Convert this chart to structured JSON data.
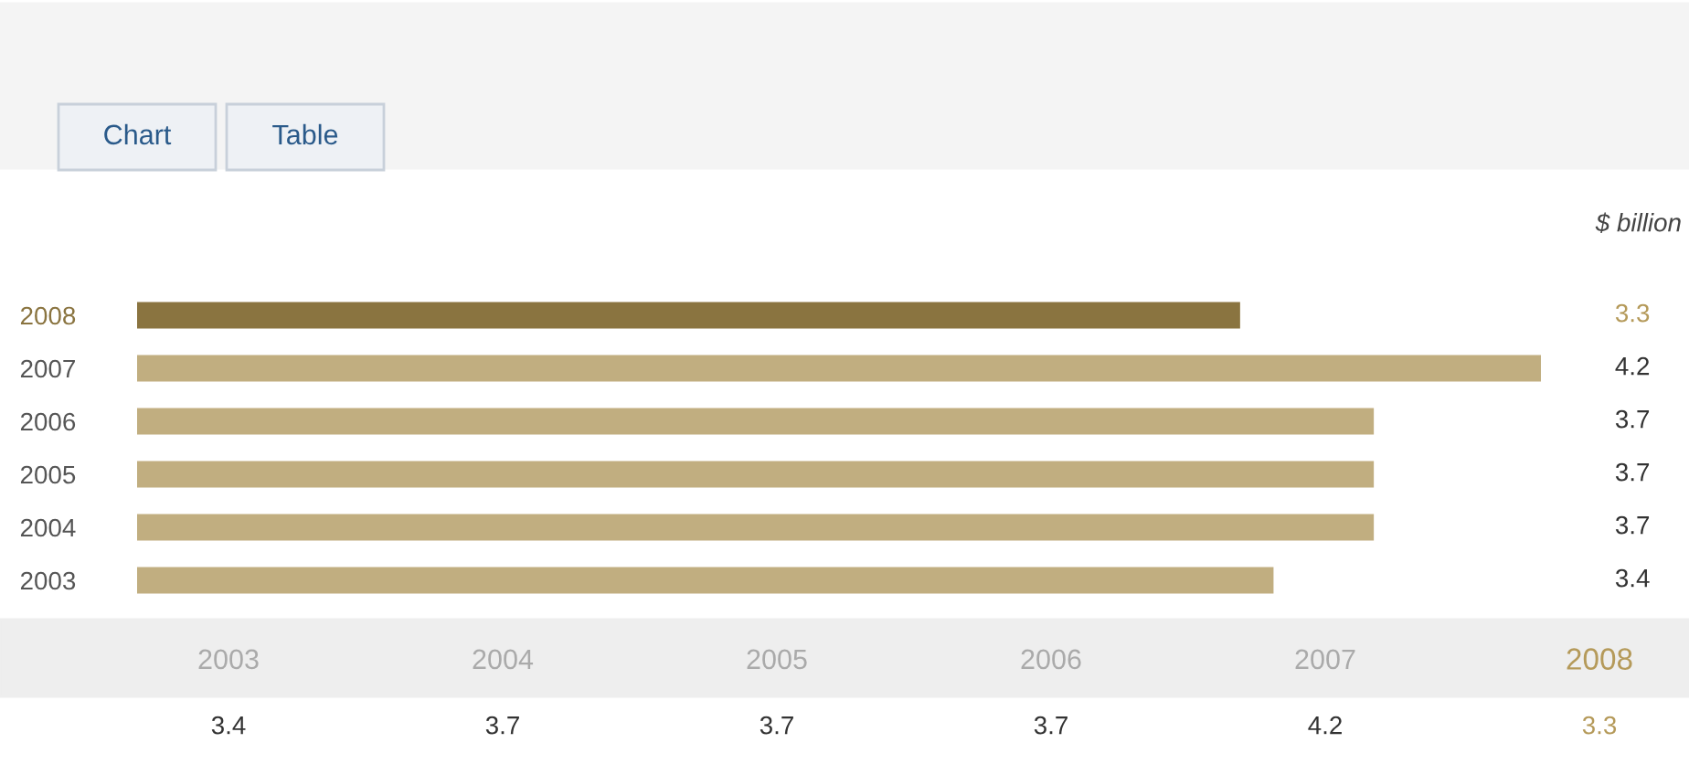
{
  "chart_data": {
    "type": "bar",
    "orientation": "horizontal",
    "subtitle": "$ billion",
    "categories": [
      "2008",
      "2007",
      "2006",
      "2005",
      "2004",
      "2003"
    ],
    "values": [
      3.3,
      4.2,
      3.7,
      3.7,
      3.7,
      3.4
    ],
    "colors": [
      "#8a7440",
      "#c1ae80",
      "#c1ae80",
      "#c1ae80",
      "#c1ae80",
      "#c1ae80"
    ],
    "xlim": [
      0,
      4.2
    ],
    "tick_labels": "y",
    "data_labels": true,
    "grid": false,
    "legend": false,
    "annotations": [
      "Chart",
      "Table",
      "3.4",
      "3.7",
      "3.7",
      "3.7",
      "4.2",
      "3.3"
    ]
  }
}
